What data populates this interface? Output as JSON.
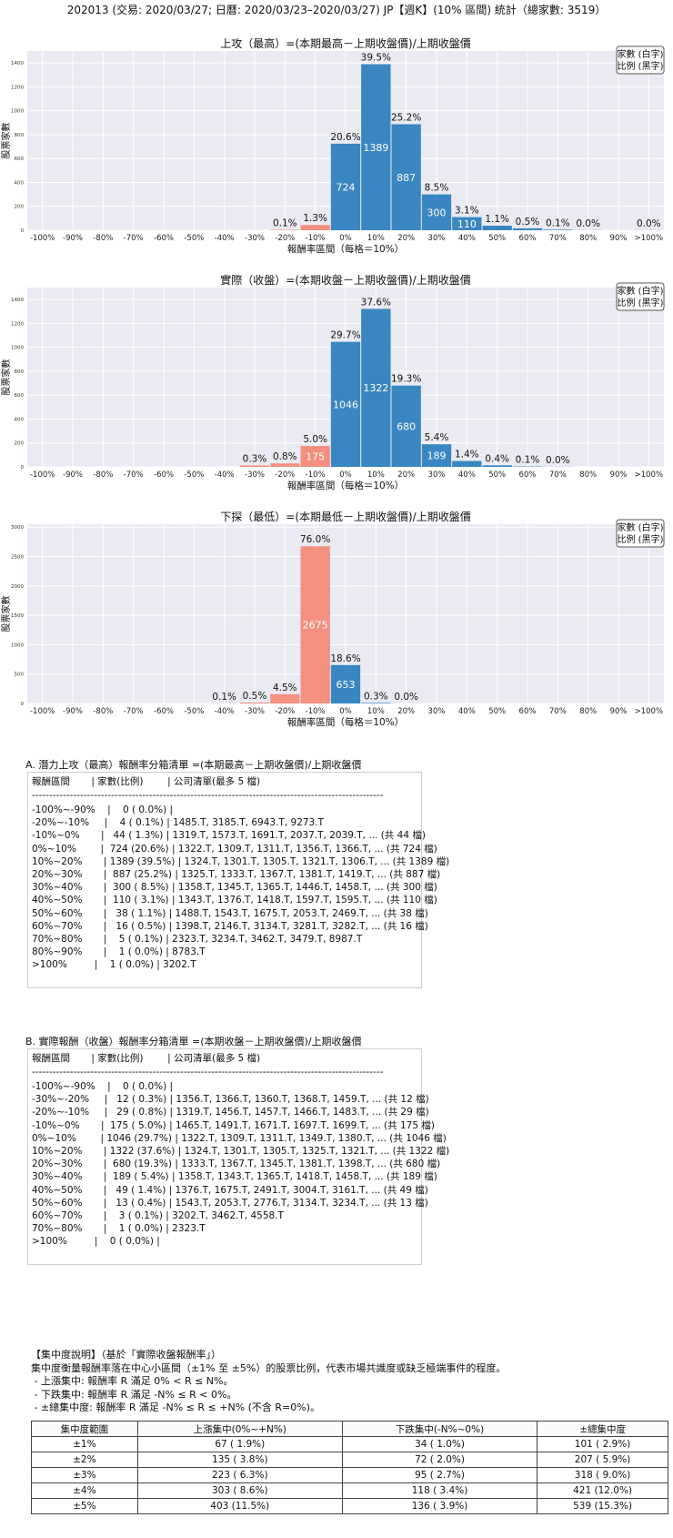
{
  "page_title": "202013 (交易: 2020/03/27; 日曆: 2020/03/23–2020/03/27) JP【週K】(10% 區間) 統計（總家數: 3519）",
  "legend_box": {
    "line1": "家數 (白字)",
    "line2": "比例 (黑字)"
  },
  "colors": {
    "up": "#3a86c0",
    "down": "#f4907f",
    "plot_bg": "#eaeaf2",
    "grid": "#ffffff"
  },
  "chart_data": [
    {
      "type": "bar",
      "title": "上攻（最高）=(本期最高－上期收盤價)/上期收盤價",
      "xlabel": "報酬率區間（每格＝10%）",
      "ylabel": "股票家數",
      "ylim": [
        0,
        1500
      ],
      "yticks": [
        0,
        200,
        400,
        600,
        800,
        1000,
        1200,
        1400
      ],
      "categories": [
        "-100%",
        "-90%",
        "-80%",
        "-70%",
        "-60%",
        "-50%",
        "-40%",
        "-30%",
        "-20%",
        "-10%",
        "0%",
        "10%",
        "20%",
        "30%",
        "40%",
        "50%",
        "60%",
        "70%",
        "80%",
        "90%",
        ">100%"
      ],
      "values": [
        0,
        0,
        0,
        0,
        0,
        0,
        0,
        0,
        4,
        44,
        724,
        1389,
        887,
        300,
        110,
        38,
        16,
        5,
        1,
        0,
        1
      ],
      "labels": [
        "",
        "",
        "",
        "",
        "",
        "",
        "",
        "",
        "0.1%",
        "1.3%",
        "20.6%",
        "39.5%",
        "25.2%",
        "8.5%",
        "3.1%",
        "1.1%",
        "0.5%",
        "0.1%",
        "0.0%",
        "",
        "0.0%"
      ],
      "negative_upto": 9
    },
    {
      "type": "bar",
      "title": "實際（收盤）=(本期收盤－上期收盤價)/上期收盤價",
      "xlabel": "報酬率區間（每格＝10%）",
      "ylabel": "股票家數",
      "ylim": [
        0,
        1500
      ],
      "yticks": [
        0,
        200,
        400,
        600,
        800,
        1000,
        1200,
        1400
      ],
      "categories": [
        "-100%",
        "-90%",
        "-80%",
        "-70%",
        "-60%",
        "-50%",
        "-40%",
        "-30%",
        "-20%",
        "-10%",
        "0%",
        "10%",
        "20%",
        "30%",
        "40%",
        "50%",
        "60%",
        "70%",
        "80%",
        "90%",
        ">100%"
      ],
      "values": [
        0,
        0,
        0,
        0,
        0,
        0,
        0,
        12,
        29,
        175,
        1046,
        1322,
        680,
        189,
        49,
        13,
        3,
        1,
        0,
        0,
        0
      ],
      "labels": [
        "",
        "",
        "",
        "",
        "",
        "",
        "",
        "0.3%",
        "0.8%",
        "5.0%",
        "29.7%",
        "37.6%",
        "19.3%",
        "5.4%",
        "1.4%",
        "0.4%",
        "0.1%",
        "0.0%",
        "",
        "",
        ""
      ],
      "negative_upto": 9
    },
    {
      "type": "bar",
      "title": "下探（最低）=(本期最低－上期收盤價)/上期收盤價",
      "xlabel": "報酬率區間（每格＝10%）",
      "ylabel": "股票家數",
      "ylim": [
        0,
        3050
      ],
      "yticks": [
        0,
        500,
        1000,
        1500,
        2000,
        2500,
        3000
      ],
      "categories": [
        "-100%",
        "-90%",
        "-80%",
        "-70%",
        "-60%",
        "-50%",
        "-40%",
        "-30%",
        "-20%",
        "-10%",
        "0%",
        "10%",
        "20%",
        "30%",
        "40%",
        "50%",
        "60%",
        "70%",
        "80%",
        "90%",
        ">100%"
      ],
      "values": [
        0,
        0,
        0,
        0,
        0,
        0,
        2,
        16,
        158,
        2675,
        653,
        10,
        1,
        0,
        0,
        0,
        0,
        0,
        0,
        0,
        0
      ],
      "labels": [
        "",
        "",
        "",
        "",
        "",
        "",
        "0.1%",
        "0.5%",
        "4.5%",
        "76.0%",
        "18.6%",
        "0.3%",
        "0.0%",
        "",
        "",
        "",
        "",
        "",
        "",
        "",
        ""
      ],
      "negative_upto": 9
    }
  ],
  "listing_a": {
    "title": "A. 潛力上攻（最高）報酬率分箱清單 =(本期最高－上期收盤價)/上期收盤價",
    "header": "報酬區間       | 家數(比例)        | 公司清單(最多 5 檔)",
    "separator": "------------------------------------------------------------------------------------------------------",
    "rows": [
      "-100%~-90%    |    0 ( 0.0%) |",
      "-20%~-10%     |    4 ( 0.1%) | 1485.T, 3185.T, 6943.T, 9273.T",
      "-10%~0%       |   44 ( 1.3%) | 1319.T, 1573.T, 1691.T, 2037.T, 2039.T, ... (共 44 檔)",
      "0%~10%        |  724 (20.6%) | 1322.T, 1309.T, 1311.T, 1356.T, 1366.T, ... (共 724 檔)",
      "10%~20%       | 1389 (39.5%) | 1324.T, 1301.T, 1305.T, 1321.T, 1306.T, ... (共 1389 檔)",
      "20%~30%       |  887 (25.2%) | 1325.T, 1333.T, 1367.T, 1381.T, 1419.T, ... (共 887 檔)",
      "30%~40%       |  300 ( 8.5%) | 1358.T, 1345.T, 1365.T, 1446.T, 1458.T, ... (共 300 檔)",
      "40%~50%       |  110 ( 3.1%) | 1343.T, 1376.T, 1418.T, 1597.T, 1595.T, ... (共 110 檔)",
      "50%~60%       |   38 ( 1.1%) | 1488.T, 1543.T, 1675.T, 2053.T, 2469.T, ... (共 38 檔)",
      "60%~70%       |   16 ( 0.5%) | 1398.T, 2146.T, 3134.T, 3281.T, 3282.T, ... (共 16 檔)",
      "70%~80%       |    5 ( 0.1%) | 2323.T, 3234.T, 3462.T, 3479.T, 8987.T",
      "80%~90%       |    1 ( 0.0%) | 8783.T",
      ">100%         |    1 ( 0.0%) | 3202.T"
    ]
  },
  "listing_b": {
    "title": "B. 實際報酬（收盤）報酬率分箱清單 =(本期收盤－上期收盤價)/上期收盤價",
    "header": "報酬區間       | 家數(比例)        | 公司清單(最多 5 檔)",
    "separator": "------------------------------------------------------------------------------------------------------",
    "rows": [
      "-100%~-90%    |    0 ( 0.0%) |",
      "-30%~-20%     |   12 ( 0.3%) | 1356.T, 1366.T, 1360.T, 1368.T, 1459.T, ... (共 12 檔)",
      "-20%~-10%     |   29 ( 0.8%) | 1319.T, 1456.T, 1457.T, 1466.T, 1483.T, ... (共 29 檔)",
      "-10%~0%       |  175 ( 5.0%) | 1465.T, 1491.T, 1671.T, 1697.T, 1699.T, ... (共 175 檔)",
      "0%~10%        | 1046 (29.7%) | 1322.T, 1309.T, 1311.T, 1349.T, 1380.T, ... (共 1046 檔)",
      "10%~20%       | 1322 (37.6%) | 1324.T, 1301.T, 1305.T, 1325.T, 1321.T, ... (共 1322 檔)",
      "20%~30%       |  680 (19.3%) | 1333.T, 1367.T, 1345.T, 1381.T, 1398.T, ... (共 680 檔)",
      "30%~40%       |  189 ( 5.4%) | 1358.T, 1343.T, 1365.T, 1418.T, 1458.T, ... (共 189 檔)",
      "40%~50%       |   49 ( 1.4%) | 1376.T, 1675.T, 2491.T, 3004.T, 3161.T, ... (共 49 檔)",
      "50%~60%       |   13 ( 0.4%) | 1543.T, 2053.T, 2776.T, 3134.T, 3234.T, ... (共 13 檔)",
      "60%~70%       |    3 ( 0.1%) | 3202.T, 3462.T, 4558.T",
      "70%~80%       |    1 ( 0.0%) | 2323.T",
      ">100%         |    0 ( 0.0%) |"
    ]
  },
  "concentration_note": {
    "title": "【集中度說明】（基於「實際收盤報酬率」）",
    "desc": "集中度衡量報酬率落在中心小區間（±1% 至 ±5%）的股票比例，代表市場共識度或缺乏極端事件的程度。",
    "line1": " - 上漲集中: 報酬率 R 滿足 0% < R ≤ N%。",
    "line2": " - 下跌集中: 報酬率 R 滿足 -N% ≤ R < 0%。",
    "line3": " - ±總集中度: 報酬率 R 滿足 -N% ≤ R ≤ +N% (不含 R=0%)。"
  },
  "summary_table": {
    "headers": [
      "集中度範圍",
      "上漲集中(0%~+N%)",
      "下跌集中(-N%~0%)",
      "±總集中度"
    ],
    "rows": [
      [
        "±1%",
        "67 ( 1.9%)",
        "34 ( 1.0%)",
        "101 ( 2.9%)"
      ],
      [
        "±2%",
        "135 ( 3.8%)",
        "72 ( 2.0%)",
        "207 ( 5.9%)"
      ],
      [
        "±3%",
        "223 ( 6.3%)",
        "95 ( 2.7%)",
        "318 ( 9.0%)"
      ],
      [
        "±4%",
        "303 ( 8.6%)",
        "118 ( 3.4%)",
        "421 (12.0%)"
      ],
      [
        "±5%",
        "403 (11.5%)",
        "136 ( 3.9%)",
        "539 (15.3%)"
      ]
    ]
  }
}
